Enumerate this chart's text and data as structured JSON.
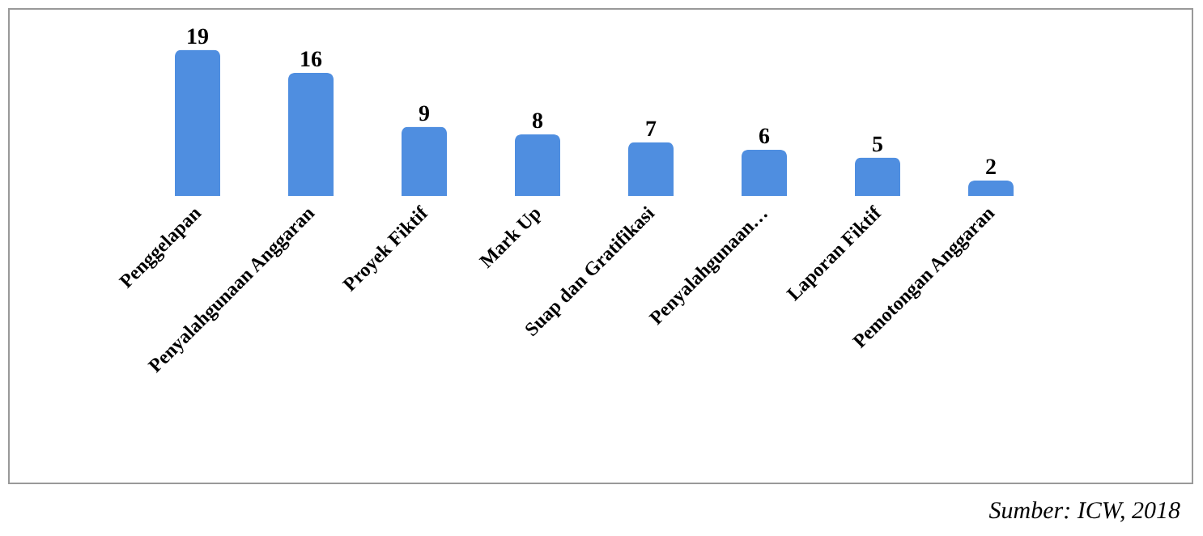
{
  "chart_data": {
    "type": "bar",
    "categories": [
      "Penggelapan",
      "Penyalahgunaan Anggaran",
      "Proyek Fiktif",
      "Mark Up",
      "Suap dan Gratifikasi",
      "Penyalahgunaan…",
      "Laporan Fiktif",
      "Pemotongan Anggaran"
    ],
    "values": [
      19,
      16,
      9,
      8,
      7,
      6,
      5,
      2
    ],
    "color": "#4f8ee0",
    "data_labels": true,
    "annotations": [
      "Sumber: ICW, 2018"
    ]
  }
}
